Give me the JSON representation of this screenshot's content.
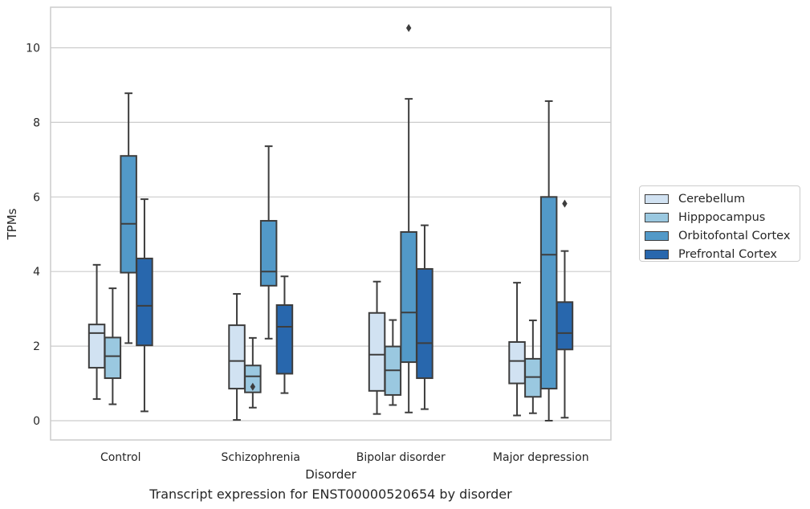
{
  "chart_data": {
    "type": "box",
    "title": "",
    "caption": "Transcript expression for ENST00000520654 by disorder",
    "xlabel": "Disorder",
    "ylabel": "TPMs",
    "ylim": [
      -0.5,
      11.1
    ],
    "yticks": [
      0,
      2,
      4,
      6,
      8,
      10
    ],
    "grid": "horizontal",
    "legend_position": "right",
    "categories": [
      "Control",
      "Schizophrenia",
      "Bipolar disorder",
      "Major depression"
    ],
    "series": [
      {
        "name": "Cerebellum",
        "color": "#d1e2f2",
        "boxes": [
          {
            "whislo": 0.58,
            "q1": 1.42,
            "med": 2.35,
            "q3": 2.58,
            "whishi": 4.18,
            "fliers": []
          },
          {
            "whislo": 0.02,
            "q1": 0.86,
            "med": 1.6,
            "q3": 2.56,
            "whishi": 3.4,
            "fliers": []
          },
          {
            "whislo": 0.18,
            "q1": 0.8,
            "med": 1.77,
            "q3": 2.89,
            "whishi": 3.73,
            "fliers": []
          },
          {
            "whislo": 0.14,
            "q1": 1.0,
            "med": 1.6,
            "q3": 2.11,
            "whishi": 3.7,
            "fliers": []
          }
        ]
      },
      {
        "name": "Hipppocampus",
        "color": "#9ac8e0",
        "boxes": [
          {
            "whislo": 0.44,
            "q1": 1.14,
            "med": 1.73,
            "q3": 2.23,
            "whishi": 3.55,
            "fliers": []
          },
          {
            "whislo": 0.35,
            "q1": 0.76,
            "med": 1.19,
            "q3": 1.48,
            "whishi": 2.22,
            "fliers": [
              0.91
            ]
          },
          {
            "whislo": 0.42,
            "q1": 0.69,
            "med": 1.35,
            "q3": 1.99,
            "whishi": 2.7,
            "fliers": []
          },
          {
            "whislo": 0.2,
            "q1": 0.64,
            "med": 1.17,
            "q3": 1.66,
            "whishi": 2.69,
            "fliers": []
          }
        ]
      },
      {
        "name": "Orbitofontal Cortex",
        "color": "#5299c8",
        "boxes": [
          {
            "whislo": 2.08,
            "q1": 3.97,
            "med": 5.28,
            "q3": 7.1,
            "whishi": 8.78,
            "fliers": []
          },
          {
            "whislo": 2.2,
            "q1": 3.62,
            "med": 4.0,
            "q3": 5.36,
            "whishi": 7.36,
            "fliers": []
          },
          {
            "whislo": 0.22,
            "q1": 1.57,
            "med": 2.9,
            "q3": 5.06,
            "whishi": 8.63,
            "fliers": [
              10.53
            ]
          },
          {
            "whislo": 0.0,
            "q1": 0.86,
            "med": 4.45,
            "q3": 6.0,
            "whishi": 8.57,
            "fliers": []
          }
        ]
      },
      {
        "name": "Prefrontal Cortex",
        "color": "#2867ad",
        "boxes": [
          {
            "whislo": 0.25,
            "q1": 2.02,
            "med": 3.08,
            "q3": 4.35,
            "whishi": 5.94,
            "fliers": []
          },
          {
            "whislo": 0.74,
            "q1": 1.26,
            "med": 2.52,
            "q3": 3.1,
            "whishi": 3.87,
            "fliers": []
          },
          {
            "whislo": 0.31,
            "q1": 1.14,
            "med": 2.08,
            "q3": 4.07,
            "whishi": 5.24,
            "fliers": []
          },
          {
            "whislo": 0.08,
            "q1": 1.91,
            "med": 2.35,
            "q3": 3.18,
            "whishi": 4.55,
            "fliers": [
              5.82
            ]
          }
        ]
      }
    ]
  }
}
